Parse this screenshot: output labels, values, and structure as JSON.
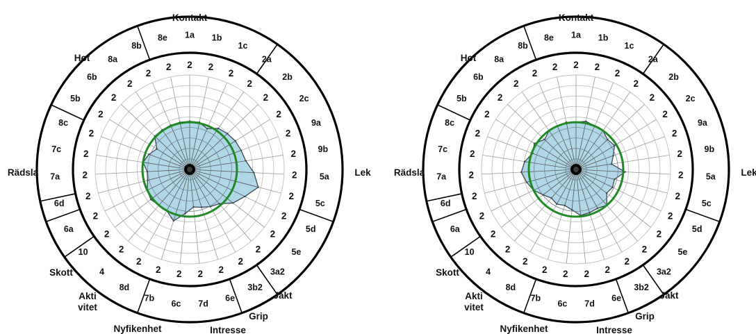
{
  "chart_data": [
    {
      "type": "radar",
      "id": "left",
      "categories": [
        "1a",
        "1b",
        "1c",
        "2a",
        "2b",
        "2c",
        "9a",
        "9b",
        "5a",
        "5c",
        "5d",
        "5e",
        "3a2",
        "3b2",
        "6e",
        "7d",
        "6c",
        "7b",
        "8d",
        "4",
        "10",
        "6a",
        "6d",
        "7a",
        "7c",
        "8c",
        "5b",
        "6b",
        "8a",
        "8b",
        "8e"
      ],
      "value_labels": [
        "2",
        "2",
        "2",
        "2",
        "2",
        "2",
        "2",
        "2",
        "2",
        "2",
        "2",
        "2",
        "2",
        "2",
        "2",
        "2",
        "2",
        "2",
        "2",
        "2",
        "2",
        "2",
        "2",
        "2",
        "2",
        "2",
        "2",
        "2",
        "2",
        "2",
        "2"
      ],
      "series": [
        {
          "values": [
            0.51,
            0.51,
            0.47,
            0.53,
            0.55,
            0.57,
            0.58,
            0.6,
            0.68,
            0.75,
            0.65,
            0.58,
            0.48,
            0.45,
            0.42,
            0.4,
            0.47,
            0.57,
            0.5,
            0.5,
            0.52,
            0.5,
            0.46,
            0.45,
            0.5,
            0.46,
            0.41,
            0.51,
            0.51,
            0.51,
            0.51
          ]
        }
      ],
      "reference_value": 0.5,
      "groups": [
        "Kontakt",
        "Lek",
        "Jakt",
        "Grip",
        "Intresse",
        "Nyfikenhet",
        "Akti\nvitet",
        "Skott",
        "Rädsla",
        "Hot"
      ],
      "colors": {
        "fill": "#a7d3e6",
        "outline": "#39474f",
        "reference": "#1f8a25",
        "grid": "#c0c0c0",
        "spoke": "#555555"
      }
    },
    {
      "type": "radar",
      "id": "right",
      "categories": [
        "1a",
        "1b",
        "1c",
        "2a",
        "2b",
        "2c",
        "9a",
        "9b",
        "5a",
        "5c",
        "5d",
        "5e",
        "3a2",
        "3b2",
        "6e",
        "7d",
        "6c",
        "7b",
        "8d",
        "4",
        "10",
        "6a",
        "6d",
        "7a",
        "7c",
        "8c",
        "5b",
        "6b",
        "8a",
        "8b",
        "8e"
      ],
      "value_labels": [
        "2",
        "2",
        "2",
        "2",
        "2",
        "2",
        "2",
        "2",
        "2",
        "2",
        "2",
        "2",
        "2",
        "2",
        "2",
        "2",
        "2",
        "2",
        "2",
        "2",
        "2",
        "2",
        "2",
        "2",
        "2",
        "2",
        "2",
        "2",
        "2",
        "2",
        "2"
      ],
      "series": [
        {
          "values": [
            0.5,
            0.52,
            0.5,
            0.5,
            0.46,
            0.48,
            0.42,
            0.38,
            0.52,
            0.42,
            0.43,
            0.41,
            0.5,
            0.47,
            0.48,
            0.49,
            0.43,
            0.4,
            0.42,
            0.4,
            0.44,
            0.5,
            0.54,
            0.58,
            0.55,
            0.49,
            0.52,
            0.46,
            0.5,
            0.5,
            0.51
          ]
        }
      ],
      "reference_value": 0.5,
      "groups": [
        "Kontakt",
        "Lek",
        "Jakt",
        "Grip",
        "Intresse",
        "Nyfikenhet",
        "Akti\nvitet",
        "Skott",
        "Rädsla",
        "Hot"
      ],
      "colors": {
        "fill": "#a7d3e6",
        "outline": "#39474f",
        "reference": "#1f8a25",
        "grid": "#c0c0c0",
        "spoke": "#555555"
      }
    }
  ]
}
